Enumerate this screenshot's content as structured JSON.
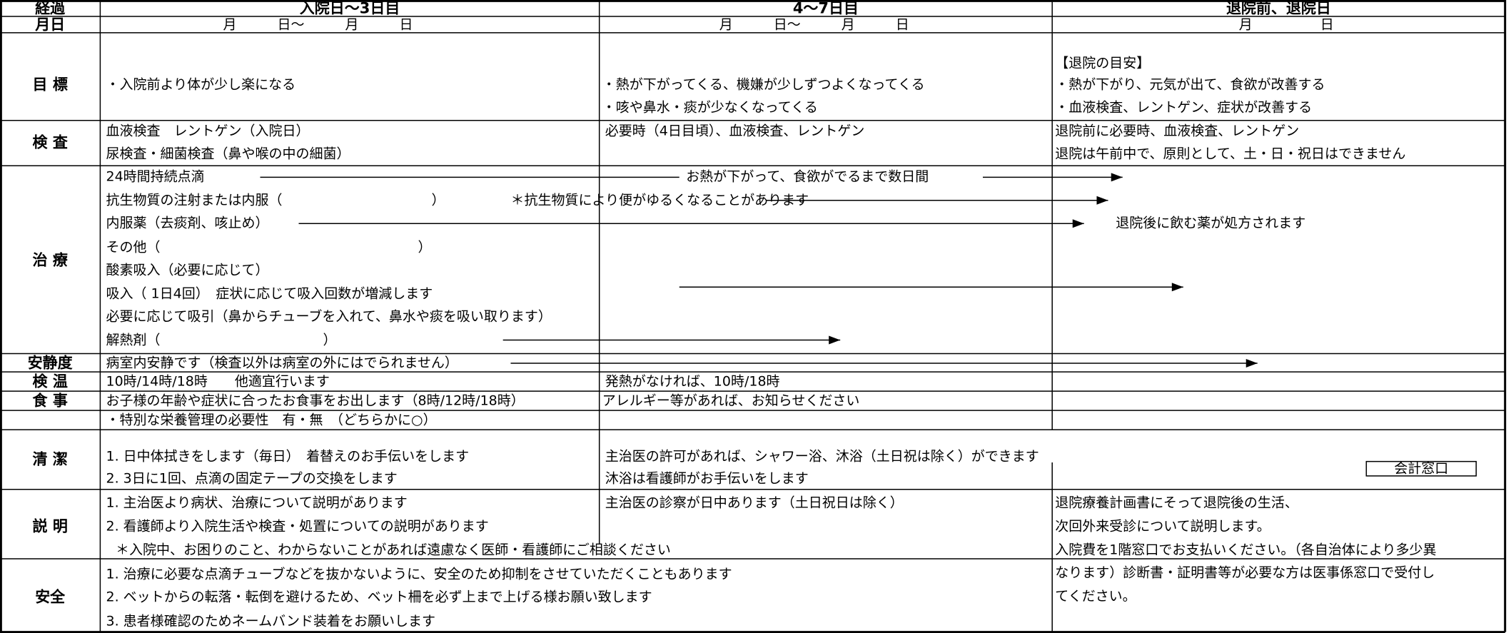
{
  "header": {
    "row_label": "経過",
    "columns": [
      "入院日〜3日目",
      "4〜7日目",
      "退院前、退院日"
    ]
  },
  "dates": {
    "label": "月日",
    "columns": [
      "月　　　日〜　　　月　　　日",
      "月　　　日〜　　　月　　　日",
      "月　　　　　日"
    ]
  },
  "rows": [
    {
      "label": "目 標",
      "texts": [
        "・入院前より体が少し楽になる",
        "・熱が下がってくる、機嫌が少しずつよくなってくる",
        "・咳や鼻水・痰が少なくなってくる",
        "【退院の目安】",
        "・熱が下がり、元気が出て、食欲が改善する",
        "・血液検査、レントゲン、症状が改善する"
      ]
    },
    {
      "label": "検 査",
      "texts": [
        "血液検査　レントゲン（入院日）",
        "尿検査・細菌検査（鼻や喉の中の細菌）",
        "必要時（4日目頃）、血液検査、レントゲン",
        "退院前に必要時、血液検査、レントゲン",
        "退院は午前中で、原則として、土・日・祝日はできません"
      ]
    },
    {
      "label": "治 療",
      "texts": [
        "24時間持続点滴",
        "お熱が下がって、食欲がでるまで数日間",
        "抗生物質の注射または内服（　　　　　　　　　　　）",
        "＊抗生物質により便がゆるくなることがあります",
        "内服薬（去痰剤、咳止め）",
        "退院後に飲む薬が処方されます",
        "その他（　　　　　　　　　　　　　　　　　　　）",
        "酸素吸入（必要に応じて）",
        "吸入（ 1日4回）　症状に応じて吸入回数が増減します",
        "必要に応じて吸引（鼻からチューブを入れて、鼻水や痰を吸い取ります）",
        "解熱剤（　　　　　　　　　　　　）"
      ]
    },
    {
      "label": "安静度",
      "texts": [
        "病室内安静です（検査以外は病室の外にはでられません）"
      ]
    },
    {
      "label": "検 温",
      "texts": [
        "10時/14時/18時　　他適宜行います",
        "発熱がなければ、10時/18時"
      ]
    },
    {
      "label": "食 事",
      "texts": [
        "お子様の年齢や症状に合ったお食事をお出します（8時/12時/18時）",
        "アレルギー等があれば、お知らせください",
        "・特別な栄養管理の必要性　有・無　（どちらかに○）"
      ]
    },
    {
      "label": "清 潔",
      "texts": [
        "1. 日中体拭きをします（毎日）　着替えのお手伝いをします",
        "2. 3日に1回、点滴の固定テープの交換をします",
        "主治医の許可があれば、シャワー浴、沐浴（土日祝は除く）ができます",
        "沐浴は看護師がお手伝いをします",
        "会計窓口"
      ]
    },
    {
      "label": "説 明",
      "texts": [
        "1. 主治医より病状、治療について説明があります",
        "2. 看護師より入院生活や検査・処置についての説明があります",
        "＊入院中、お困りのこと、わからないことがあれば遠慮なく医師・看護師にご相談ください",
        "主治医の診察が日中あります（土日祝日は除く）",
        "退院療養計画書にそって退院後の生活、",
        "次回外来受診について説明します。",
        "入院費を1階窓口でお支払いください。（各自治体により多少異",
        "なります）診断書・証明書等が必要な方は医事係窓口で受付し",
        "てください。"
      ]
    },
    {
      "label": "安全",
      "texts": [
        "1. 治療に必要な点滴チューブなどを抜かないように、安全のため抑制をさせていただくこともあります",
        "2. ベットからの転落・転倒を避けるため、ベット柵を必ず上まで上げる様お願い致します",
        "3. 患者様確認のためネームバンド装着をお願いします"
      ]
    }
  ]
}
